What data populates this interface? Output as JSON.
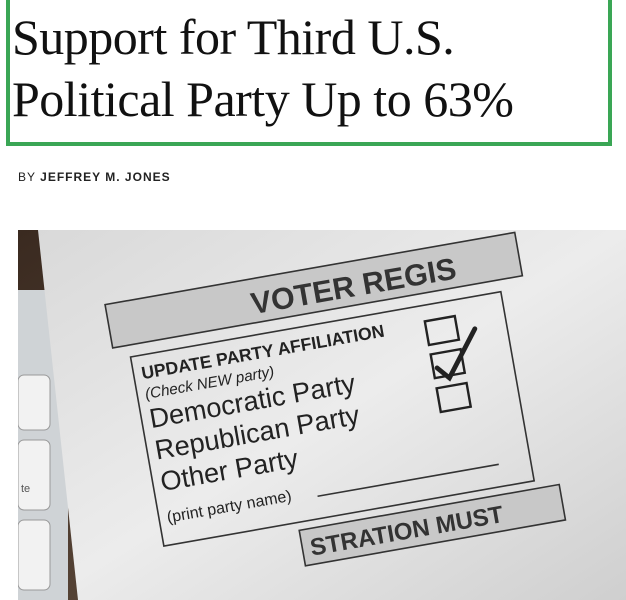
{
  "article": {
    "title_line1": "Support for Third U.S.",
    "title_line2": "Political Party Up to 63%",
    "byline_prefix": "BY",
    "author": "JEFFREY M. JONES"
  },
  "image": {
    "subject": "voter registration form",
    "form_text": {
      "header": "VOTER REGIS",
      "section": "UPDATE PARTY AFFILIATION",
      "instruction": "(Check NEW party)",
      "option1": "Democratic Party",
      "option2": "Republican Party",
      "option3": "Other Party",
      "note": "(print party name)",
      "footer": "STRATION MUST",
      "key": "te"
    },
    "checked_option": "Republican Party"
  },
  "colors": {
    "headline_border": "#3aa655"
  }
}
